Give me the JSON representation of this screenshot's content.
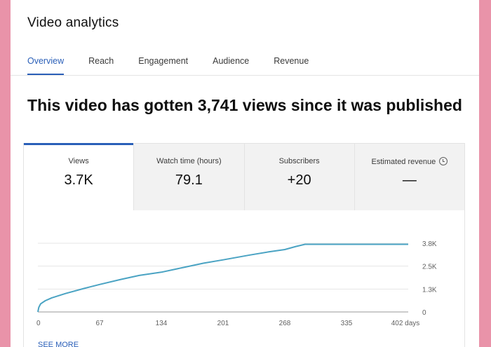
{
  "header": {
    "title": "Video analytics"
  },
  "tabs": [
    {
      "label": "Overview",
      "active": true
    },
    {
      "label": "Reach",
      "active": false
    },
    {
      "label": "Engagement",
      "active": false
    },
    {
      "label": "Audience",
      "active": false
    },
    {
      "label": "Revenue",
      "active": false
    }
  ],
  "headline": "This video has gotten 3,741 views since it was published",
  "metrics": [
    {
      "label": "Views",
      "value": "3.7K",
      "active": true
    },
    {
      "label": "Watch time (hours)",
      "value": "79.1",
      "active": false
    },
    {
      "label": "Subscribers",
      "value": "+20",
      "active": false
    },
    {
      "label": "Estimated revenue",
      "value": "—",
      "active": false,
      "icon": "clock-icon"
    }
  ],
  "see_more": "SEE MORE",
  "colors": {
    "accent": "#2a5fb8",
    "line": "#4aa3c3",
    "background": "#e993a9"
  },
  "chart_data": {
    "type": "line",
    "title": "",
    "xlabel": "",
    "ylabel": "",
    "x_ticks": [
      "0",
      "67",
      "134",
      "201",
      "268",
      "335",
      "402 days"
    ],
    "y_ticks": [
      "0",
      "1.3K",
      "2.5K",
      "3.8K"
    ],
    "xlim": [
      0,
      402
    ],
    "ylim": [
      0,
      3800
    ],
    "grid": true,
    "series": [
      {
        "x": [
          0,
          1,
          3,
          8,
          15,
          30,
          50,
          67,
          90,
          110,
          134,
          160,
          180,
          201,
          230,
          250,
          268,
          280,
          290,
          300,
          320,
          340,
          360,
          380,
          402
        ],
        "y": [
          0,
          250,
          450,
          620,
          780,
          1020,
          1300,
          1520,
          1800,
          2020,
          2200,
          2480,
          2700,
          2880,
          3150,
          3320,
          3450,
          3620,
          3741,
          3741,
          3741,
          3741,
          3741,
          3741,
          3741
        ]
      }
    ]
  }
}
